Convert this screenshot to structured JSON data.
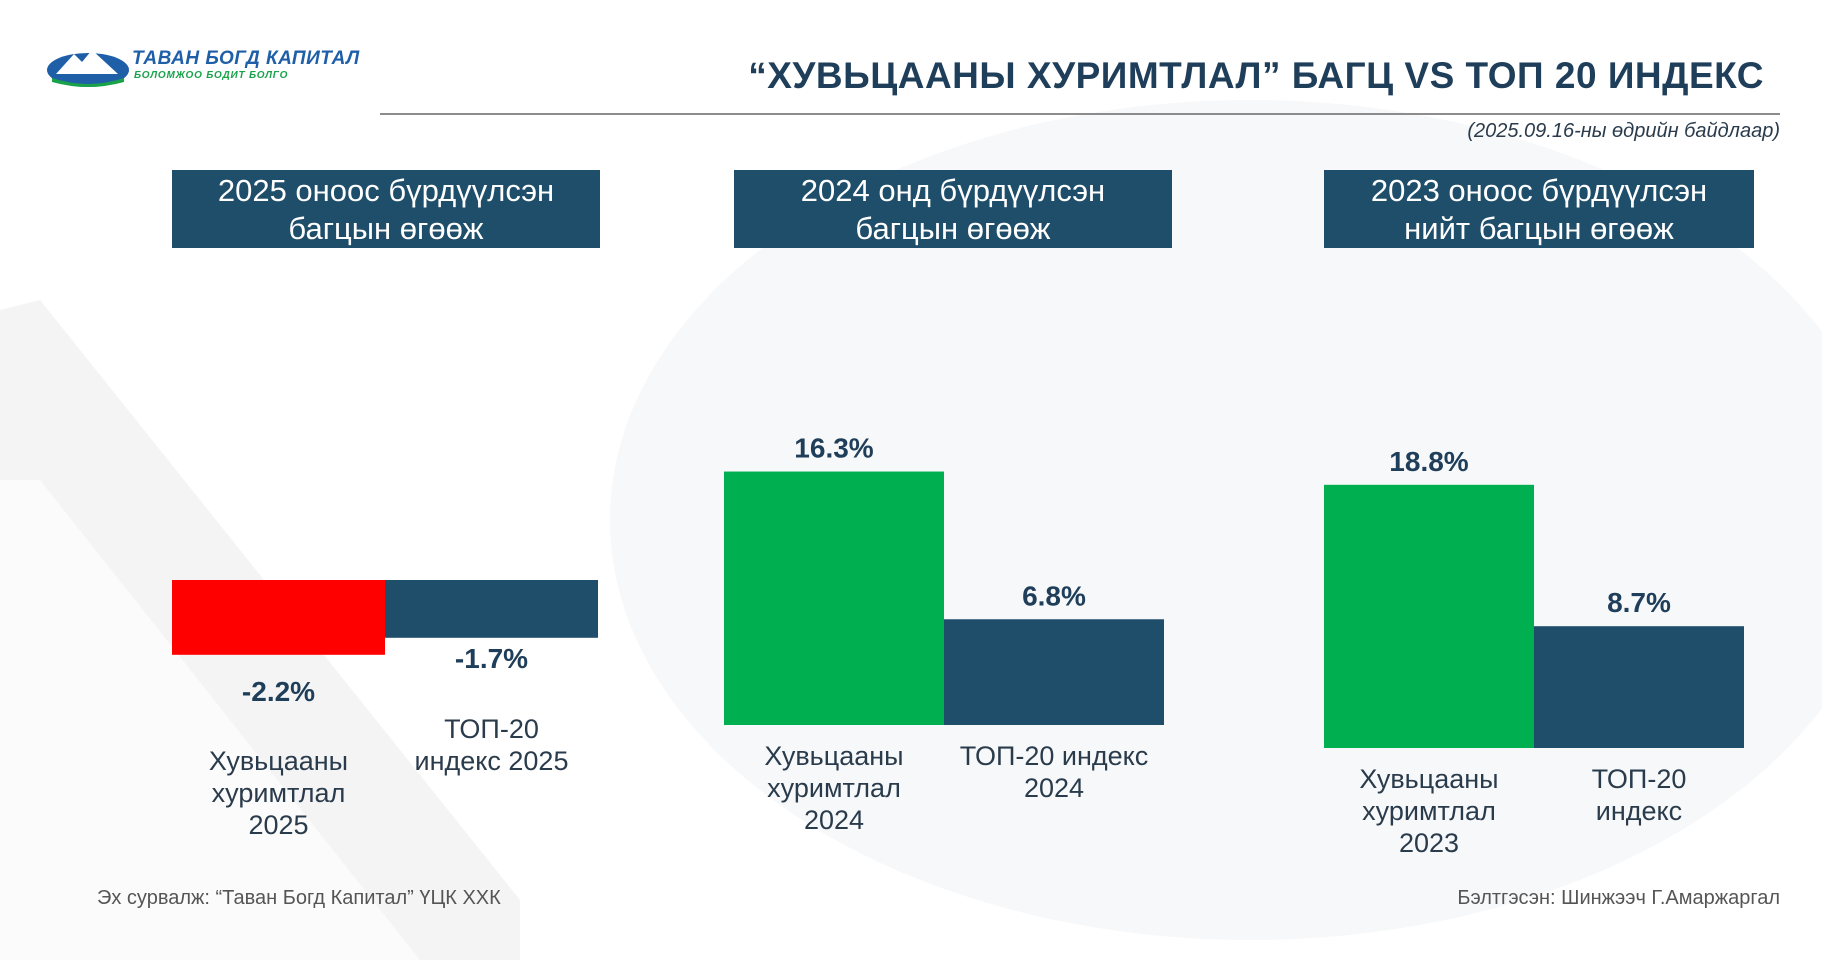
{
  "header": {
    "logo_name": "ТАВАН БОГД КАПИТАЛ",
    "logo_tagline": "БОЛОМЖОО БОДИТ БОЛГО",
    "title": "“ХУВЬЦААНЫ ХУРИМТЛАЛ” БАГЦ VS ТОП 20 ИНДЕКС",
    "as_of": "(2025.09.16-ны өдрийн байдлаар)"
  },
  "colors": {
    "portfolio_positive": "#00b050",
    "portfolio_negative": "#ff0000",
    "index": "#1f4e6b",
    "title": "#1f3e5a",
    "label": "#1f3e5a"
  },
  "chart_data": [
    {
      "type": "bar",
      "title_lines": [
        "2025 оноос бүрдүүлсэн",
        "багцын өгөөж"
      ],
      "categories": [
        [
          "Хувьцааны",
          "хуримтлал",
          "2025"
        ],
        [
          "ТОП-20",
          "индекс 2025"
        ]
      ],
      "values": [
        -2.2,
        -1.7
      ],
      "data_labels": [
        "-2.2%",
        "-1.7%"
      ],
      "unit": "%"
    },
    {
      "type": "bar",
      "title_lines": [
        "2024 онд бүрдүүлсэн",
        "багцын өгөөж"
      ],
      "categories": [
        [
          "Хувьцааны",
          "хуримтлал",
          "2024"
        ],
        [
          "ТОП-20 индекс",
          "2024"
        ]
      ],
      "values": [
        16.3,
        6.8
      ],
      "data_labels": [
        "16.3%",
        "6.8%"
      ],
      "unit": "%"
    },
    {
      "type": "bar",
      "title_lines": [
        "2023 оноос бүрдүүлсэн",
        "нийт багцын өгөөж"
      ],
      "categories": [
        [
          "Хувьцааны",
          "хуримтлал",
          "2023"
        ],
        [
          "ТОП-20",
          "индекс"
        ]
      ],
      "values": [
        18.8,
        8.7
      ],
      "data_labels": [
        "18.8%",
        "8.7%"
      ],
      "unit": "%"
    }
  ],
  "footer": {
    "source": "Эх сурвалж: “Таван Богд Капитал” ҮЦК ХХК",
    "prepared_by": "Бэлтгэсэн: Шинжээч Г.Амаржаргал"
  }
}
